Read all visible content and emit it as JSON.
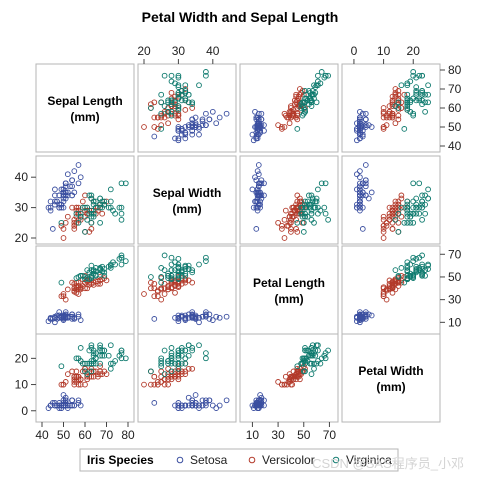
{
  "chart_data": {
    "type": "scatter",
    "title": "Petal Width and Sepal Length",
    "variables": [
      {
        "label_line1": "Sepal Length",
        "label_line2": "(mm)",
        "range": [
          40,
          80
        ],
        "ticks": [
          40,
          50,
          60,
          70,
          80
        ]
      },
      {
        "label_line1": "Sepal Width",
        "label_line2": "(mm)",
        "range": [
          20,
          45
        ],
        "ticks": [
          20,
          30,
          40
        ]
      },
      {
        "label_line1": "Petal Length",
        "label_line2": "(mm)",
        "range": [
          5,
          72
        ],
        "ticks": [
          10,
          30,
          50,
          70
        ]
      },
      {
        "label_line1": "Petal Width",
        "label_line2": "(mm)",
        "range": [
          -2,
          27
        ],
        "ticks": [
          0,
          10,
          20
        ]
      }
    ],
    "legend": {
      "title": "Iris Species",
      "position": "bottom",
      "entries": [
        {
          "name": "Setosa",
          "color": "#3b4fa0"
        },
        {
          "name": "Versicolor",
          "color": "#b33a2a"
        },
        {
          "name": "Virginica",
          "color": "#0e7a6e"
        }
      ]
    },
    "grid": false,
    "series": [
      {
        "name": "Setosa",
        "color": "#3b4fa0",
        "points": [
          [
            51,
            35,
            14,
            2
          ],
          [
            49,
            30,
            14,
            2
          ],
          [
            47,
            32,
            13,
            2
          ],
          [
            46,
            31,
            15,
            2
          ],
          [
            50,
            36,
            14,
            2
          ],
          [
            54,
            39,
            17,
            4
          ],
          [
            46,
            34,
            14,
            3
          ],
          [
            50,
            34,
            15,
            2
          ],
          [
            44,
            29,
            14,
            2
          ],
          [
            49,
            31,
            15,
            1
          ],
          [
            54,
            37,
            15,
            2
          ],
          [
            48,
            34,
            16,
            2
          ],
          [
            48,
            30,
            14,
            1
          ],
          [
            43,
            30,
            11,
            1
          ],
          [
            58,
            40,
            12,
            2
          ],
          [
            57,
            44,
            15,
            4
          ],
          [
            54,
            39,
            13,
            4
          ],
          [
            51,
            35,
            14,
            3
          ],
          [
            57,
            38,
            17,
            3
          ],
          [
            51,
            38,
            15,
            3
          ],
          [
            54,
            34,
            17,
            2
          ],
          [
            51,
            37,
            15,
            4
          ],
          [
            46,
            36,
            10,
            2
          ],
          [
            51,
            33,
            17,
            5
          ],
          [
            48,
            34,
            19,
            2
          ],
          [
            50,
            30,
            16,
            2
          ],
          [
            50,
            34,
            16,
            4
          ],
          [
            52,
            35,
            15,
            2
          ],
          [
            52,
            34,
            14,
            2
          ],
          [
            47,
            32,
            16,
            2
          ],
          [
            48,
            31,
            16,
            2
          ],
          [
            54,
            34,
            15,
            4
          ],
          [
            52,
            41,
            15,
            1
          ],
          [
            55,
            42,
            14,
            2
          ],
          [
            49,
            31,
            15,
            2
          ],
          [
            50,
            32,
            12,
            2
          ],
          [
            55,
            35,
            13,
            2
          ],
          [
            49,
            36,
            14,
            1
          ],
          [
            44,
            30,
            13,
            2
          ],
          [
            51,
            34,
            15,
            2
          ],
          [
            50,
            35,
            13,
            3
          ],
          [
            45,
            23,
            13,
            3
          ],
          [
            44,
            32,
            13,
            2
          ],
          [
            50,
            35,
            16,
            6
          ],
          [
            51,
            38,
            19,
            4
          ],
          [
            48,
            30,
            14,
            3
          ],
          [
            51,
            38,
            16,
            2
          ],
          [
            46,
            32,
            14,
            2
          ],
          [
            53,
            37,
            15,
            2
          ],
          [
            50,
            33,
            14,
            2
          ]
        ]
      },
      {
        "name": "Versicolor",
        "color": "#b33a2a",
        "points": [
          [
            70,
            32,
            47,
            14
          ],
          [
            64,
            32,
            45,
            15
          ],
          [
            69,
            31,
            49,
            15
          ],
          [
            55,
            23,
            40,
            13
          ],
          [
            65,
            28,
            46,
            15
          ],
          [
            57,
            28,
            45,
            13
          ],
          [
            63,
            33,
            47,
            16
          ],
          [
            49,
            24,
            33,
            10
          ],
          [
            66,
            29,
            46,
            13
          ],
          [
            52,
            27,
            39,
            14
          ],
          [
            50,
            20,
            35,
            10
          ],
          [
            59,
            30,
            42,
            15
          ],
          [
            60,
            22,
            40,
            10
          ],
          [
            61,
            29,
            47,
            14
          ],
          [
            56,
            29,
            36,
            13
          ],
          [
            67,
            31,
            44,
            14
          ],
          [
            56,
            30,
            45,
            15
          ],
          [
            58,
            27,
            41,
            10
          ],
          [
            62,
            22,
            45,
            15
          ],
          [
            56,
            25,
            39,
            11
          ],
          [
            59,
            32,
            48,
            18
          ],
          [
            61,
            28,
            40,
            13
          ],
          [
            63,
            25,
            49,
            15
          ],
          [
            61,
            28,
            47,
            12
          ],
          [
            64,
            29,
            43,
            13
          ],
          [
            66,
            30,
            44,
            14
          ],
          [
            68,
            28,
            48,
            14
          ],
          [
            67,
            30,
            50,
            17
          ],
          [
            60,
            29,
            45,
            15
          ],
          [
            57,
            26,
            35,
            10
          ],
          [
            55,
            24,
            38,
            11
          ],
          [
            55,
            24,
            37,
            10
          ],
          [
            58,
            27,
            39,
            12
          ],
          [
            60,
            27,
            51,
            16
          ],
          [
            54,
            30,
            45,
            15
          ],
          [
            60,
            34,
            45,
            16
          ],
          [
            67,
            31,
            47,
            15
          ],
          [
            63,
            23,
            44,
            13
          ],
          [
            56,
            30,
            41,
            13
          ],
          [
            55,
            25,
            40,
            13
          ],
          [
            55,
            26,
            44,
            12
          ],
          [
            61,
            30,
            46,
            14
          ],
          [
            58,
            26,
            40,
            12
          ],
          [
            50,
            23,
            33,
            10
          ],
          [
            56,
            27,
            42,
            13
          ],
          [
            57,
            30,
            42,
            12
          ],
          [
            57,
            29,
            42,
            13
          ],
          [
            62,
            29,
            43,
            13
          ],
          [
            51,
            25,
            30,
            11
          ],
          [
            57,
            28,
            41,
            13
          ]
        ]
      },
      {
        "name": "Virginica",
        "color": "#0e7a6e",
        "points": [
          [
            63,
            33,
            60,
            25
          ],
          [
            58,
            27,
            51,
            19
          ],
          [
            71,
            30,
            59,
            21
          ],
          [
            63,
            29,
            56,
            18
          ],
          [
            65,
            30,
            58,
            22
          ],
          [
            76,
            30,
            66,
            21
          ],
          [
            49,
            25,
            45,
            17
          ],
          [
            73,
            29,
            63,
            18
          ],
          [
            67,
            25,
            58,
            18
          ],
          [
            72,
            36,
            61,
            25
          ],
          [
            65,
            32,
            51,
            20
          ],
          [
            64,
            27,
            53,
            19
          ],
          [
            68,
            30,
            55,
            21
          ],
          [
            57,
            25,
            50,
            20
          ],
          [
            58,
            28,
            51,
            24
          ],
          [
            64,
            32,
            53,
            23
          ],
          [
            65,
            30,
            55,
            18
          ],
          [
            77,
            38,
            67,
            22
          ],
          [
            77,
            26,
            69,
            23
          ],
          [
            60,
            22,
            50,
            15
          ],
          [
            69,
            32,
            57,
            23
          ],
          [
            56,
            28,
            49,
            20
          ],
          [
            77,
            28,
            67,
            20
          ],
          [
            63,
            27,
            49,
            18
          ],
          [
            67,
            33,
            57,
            21
          ],
          [
            72,
            32,
            60,
            18
          ],
          [
            62,
            28,
            48,
            18
          ],
          [
            61,
            30,
            49,
            18
          ],
          [
            64,
            28,
            56,
            21
          ],
          [
            72,
            30,
            58,
            16
          ],
          [
            74,
            28,
            61,
            19
          ],
          [
            79,
            38,
            64,
            20
          ],
          [
            64,
            28,
            56,
            22
          ],
          [
            63,
            28,
            51,
            15
          ],
          [
            61,
            26,
            56,
            14
          ],
          [
            77,
            30,
            61,
            23
          ],
          [
            63,
            34,
            56,
            24
          ],
          [
            64,
            31,
            55,
            18
          ],
          [
            60,
            30,
            48,
            18
          ],
          [
            69,
            31,
            54,
            21
          ],
          [
            67,
            31,
            56,
            24
          ],
          [
            69,
            31,
            51,
            23
          ],
          [
            58,
            27,
            51,
            19
          ],
          [
            68,
            32,
            59,
            23
          ],
          [
            67,
            33,
            57,
            25
          ],
          [
            67,
            30,
            52,
            23
          ],
          [
            63,
            25,
            50,
            19
          ],
          [
            65,
            30,
            52,
            20
          ],
          [
            62,
            34,
            54,
            23
          ],
          [
            59,
            30,
            51,
            18
          ]
        ]
      }
    ]
  },
  "watermark": "CSDN @SAS程序员_小邓"
}
